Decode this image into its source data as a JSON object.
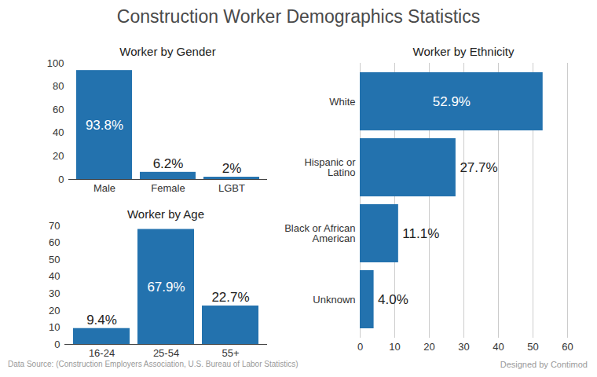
{
  "title": "Construction Worker Demographics Statistics",
  "source": "Data Source: (Construction Employers Association, U.S. Bureau of Labor Statistics)",
  "credit": "Designed by Contimod",
  "chart_data": [
    {
      "type": "bar",
      "title": "Worker by Gender",
      "categories": [
        "Male",
        "Female",
        "LGBT"
      ],
      "values": [
        93.8,
        6.2,
        2
      ],
      "value_labels": [
        "93.8%",
        "6.2%",
        "2%"
      ],
      "color": "#2372ae",
      "ylim": [
        0,
        100
      ],
      "yticks": [
        0,
        20,
        40,
        60,
        80,
        100
      ],
      "grid": false,
      "data_labels": true
    },
    {
      "type": "bar",
      "title": "Worker by Age",
      "categories": [
        "16-24",
        "25-54",
        "55+"
      ],
      "values": [
        9.4,
        67.9,
        22.7
      ],
      "value_labels": [
        "9.4%",
        "67.9%",
        "22.7%"
      ],
      "color": "#2372ae",
      "ylim": [
        0,
        70
      ],
      "yticks": [
        0,
        10,
        20,
        30,
        40,
        50,
        60,
        70
      ],
      "grid": false,
      "data_labels": true
    },
    {
      "type": "bar",
      "title": "Worker by Ethnicity",
      "orientation": "horizontal",
      "categories": [
        "White",
        "Hispanic or Latino",
        "Black or African American",
        "Unknown"
      ],
      "values": [
        52.9,
        27.7,
        11.1,
        4.0
      ],
      "value_labels": [
        "52.9%",
        "27.7%",
        "11.1%",
        "4.0%"
      ],
      "color": "#2372ae",
      "xlim": [
        0,
        60
      ],
      "xticks": [
        0,
        10,
        20,
        30,
        40,
        50,
        60
      ],
      "grid": true,
      "data_labels": true
    }
  ]
}
